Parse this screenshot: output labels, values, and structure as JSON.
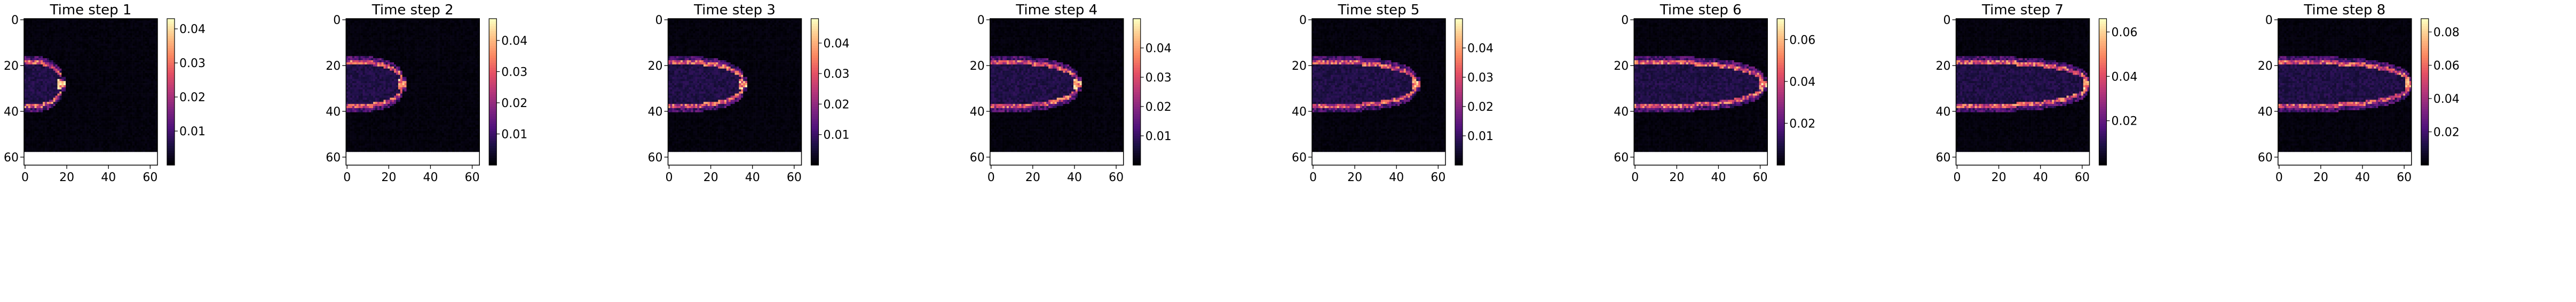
{
  "colormap": "magma",
  "chart_data": [
    {
      "type": "heatmap",
      "title": "Time step 1",
      "xlim": [
        0,
        63
      ],
      "ylim": [
        63,
        0
      ],
      "x_ticks": [
        "0",
        "20",
        "40",
        "60"
      ],
      "y_ticks": [
        "0",
        "20",
        "40",
        "60"
      ],
      "grid": false,
      "front_x": 18,
      "colorbar": {
        "range": [
          0.0,
          0.043
        ],
        "ticks": [
          "0.01",
          "0.02",
          "0.03",
          "0.04"
        ],
        "tick_values": [
          0.01,
          0.02,
          0.03,
          0.04
        ]
      }
    },
    {
      "type": "heatmap",
      "title": "Time step 2",
      "xlim": [
        0,
        63
      ],
      "ylim": [
        63,
        0
      ],
      "x_ticks": [
        "0",
        "20",
        "40",
        "60"
      ],
      "y_ticks": [
        "0",
        "20",
        "40",
        "60"
      ],
      "grid": false,
      "front_x": 27,
      "colorbar": {
        "range": [
          0.0,
          0.047
        ],
        "ticks": [
          "0.01",
          "0.02",
          "0.03",
          "0.04"
        ],
        "tick_values": [
          0.01,
          0.02,
          0.03,
          0.04
        ]
      }
    },
    {
      "type": "heatmap",
      "title": "Time step 3",
      "xlim": [
        0,
        63
      ],
      "ylim": [
        63,
        0
      ],
      "x_ticks": [
        "0",
        "20",
        "40",
        "60"
      ],
      "y_ticks": [
        "0",
        "20",
        "40",
        "60"
      ],
      "grid": false,
      "front_x": 36,
      "colorbar": {
        "range": [
          0.0,
          0.048
        ],
        "ticks": [
          "0.01",
          "0.02",
          "0.03",
          "0.04"
        ],
        "tick_values": [
          0.01,
          0.02,
          0.03,
          0.04
        ]
      }
    },
    {
      "type": "heatmap",
      "title": "Time step 4",
      "xlim": [
        0,
        63
      ],
      "ylim": [
        63,
        0
      ],
      "x_ticks": [
        "0",
        "20",
        "40",
        "60"
      ],
      "y_ticks": [
        "0",
        "20",
        "40",
        "60"
      ],
      "grid": false,
      "front_x": 42,
      "colorbar": {
        "range": [
          0.0,
          0.05
        ],
        "ticks": [
          "0.01",
          "0.02",
          "0.03",
          "0.04"
        ],
        "tick_values": [
          0.01,
          0.02,
          0.03,
          0.04
        ]
      }
    },
    {
      "type": "heatmap",
      "title": "Time step 5",
      "xlim": [
        0,
        63
      ],
      "ylim": [
        63,
        0
      ],
      "x_ticks": [
        "0",
        "20",
        "40",
        "60"
      ],
      "y_ticks": [
        "0",
        "20",
        "40",
        "60"
      ],
      "grid": false,
      "front_x": 50,
      "colorbar": {
        "range": [
          0.0,
          0.05
        ],
        "ticks": [
          "0.01",
          "0.02",
          "0.03",
          "0.04"
        ],
        "tick_values": [
          0.01,
          0.02,
          0.03,
          0.04
        ]
      }
    },
    {
      "type": "heatmap",
      "title": "Time step 6",
      "xlim": [
        0,
        63
      ],
      "ylim": [
        63,
        0
      ],
      "x_ticks": [
        "0",
        "20",
        "40",
        "60"
      ],
      "y_ticks": [
        "0",
        "20",
        "40",
        "60"
      ],
      "grid": false,
      "front_x": 62,
      "colorbar": {
        "range": [
          0.0,
          0.07
        ],
        "ticks": [
          "0.02",
          "0.04",
          "0.06"
        ],
        "tick_values": [
          0.02,
          0.04,
          0.06
        ]
      }
    },
    {
      "type": "heatmap",
      "title": "Time step 7",
      "xlim": [
        0,
        63
      ],
      "ylim": [
        63,
        0
      ],
      "x_ticks": [
        "0",
        "20",
        "40",
        "60"
      ],
      "y_ticks": [
        "0",
        "20",
        "40",
        "60"
      ],
      "grid": false,
      "front_x": 63,
      "colorbar": {
        "range": [
          0.0,
          0.066
        ],
        "ticks": [
          "0.02",
          "0.04",
          "0.06"
        ],
        "tick_values": [
          0.02,
          0.04,
          0.06
        ]
      }
    },
    {
      "type": "heatmap",
      "title": "Time step 8",
      "xlim": [
        0,
        63
      ],
      "ylim": [
        63,
        0
      ],
      "x_ticks": [
        "0",
        "20",
        "40",
        "60"
      ],
      "y_ticks": [
        "0",
        "20",
        "40",
        "60"
      ],
      "grid": false,
      "front_x": 63,
      "colorbar": {
        "range": [
          0.0,
          0.088
        ],
        "ticks": [
          "0.02",
          "0.04",
          "0.06",
          "0.08"
        ],
        "tick_values": [
          0.02,
          0.04,
          0.06,
          0.08
        ]
      }
    }
  ]
}
